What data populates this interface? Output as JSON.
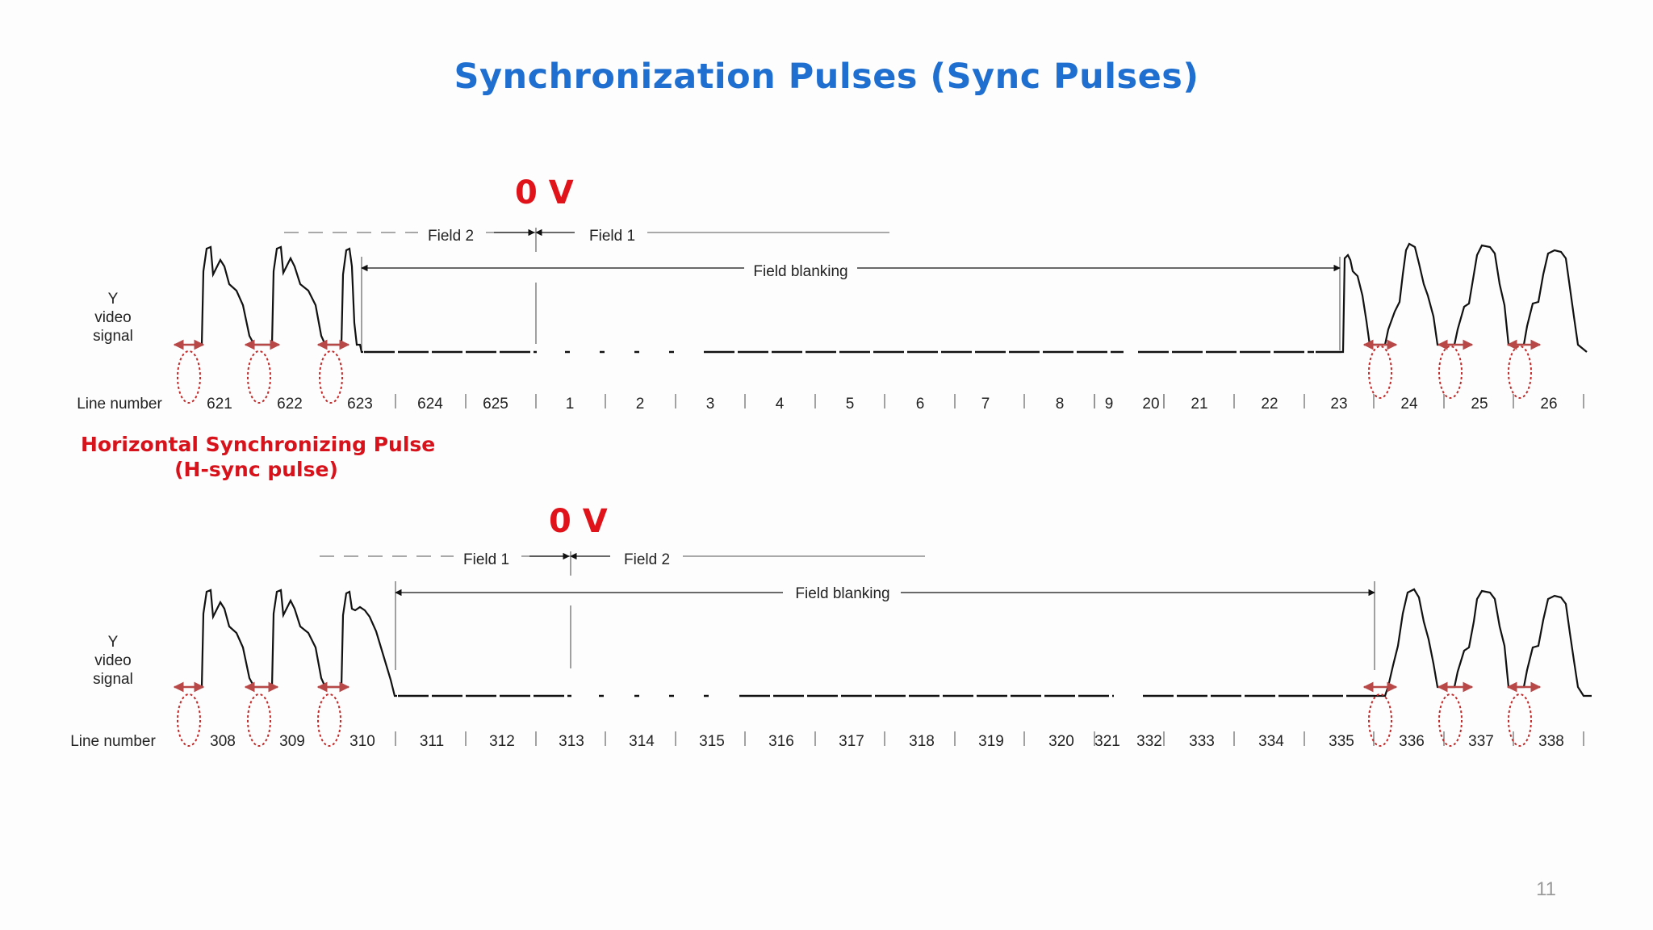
{
  "title": "Synchronization Pulses (Sync Pulses)",
  "page_number": "11",
  "annotation": {
    "line1": "Horizontal Synchronizing Pulse",
    "line2": "(H-sync pulse)"
  },
  "colors": {
    "title": "#1f6fd1",
    "highlight_red": "#e0131b",
    "hsync_marker": "#b84747",
    "signal": "#111111"
  },
  "diagrams": [
    {
      "zero_v_label": "0 V",
      "y_label": [
        "Y",
        "video",
        "signal"
      ],
      "line_number_label": "Line number",
      "field_left": "Field 2",
      "field_right": "Field 1",
      "field_blanking": "Field blanking",
      "line_numbers": [
        "621",
        "622",
        "623",
        "624",
        "625",
        "1",
        "2",
        "3",
        "4",
        "5",
        "6",
        "7",
        "8",
        "9",
        "20",
        "21",
        "22",
        "23",
        "24",
        "25",
        "26"
      ]
    },
    {
      "zero_v_label": "0 V",
      "y_label": [
        "Y",
        "video",
        "signal"
      ],
      "line_number_label": "Line number",
      "field_left": "Field 1",
      "field_right": "Field 2",
      "field_blanking": "Field blanking",
      "line_numbers": [
        "308",
        "309",
        "310",
        "311",
        "312",
        "313",
        "314",
        "315",
        "316",
        "317",
        "318",
        "319",
        "320",
        "321",
        "332",
        "333",
        "334",
        "335",
        "336",
        "337",
        "338"
      ]
    }
  ]
}
